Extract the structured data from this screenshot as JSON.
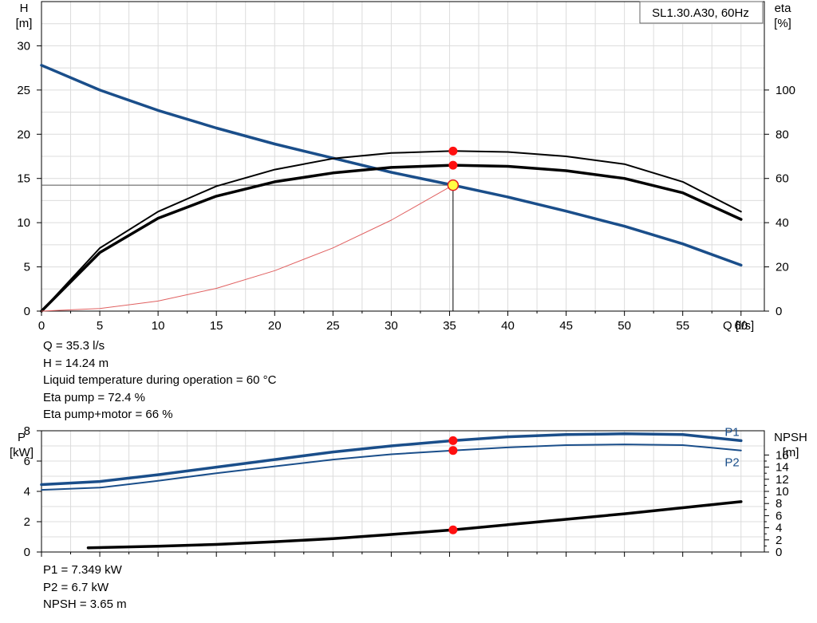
{
  "chart_data": [
    {
      "type": "line",
      "title": "SL1.30.A30, 60Hz",
      "xlabel": "Q [l/s]",
      "ylabel_left": [
        "H",
        "[m]"
      ],
      "ylabel_right": [
        "eta",
        "[%]"
      ],
      "xlim": [
        0,
        62
      ],
      "ylim_left": [
        0,
        35
      ],
      "ylim_right": [
        0,
        140
      ],
      "x_ticks": [
        "0",
        "5",
        "10",
        "15",
        "20",
        "25",
        "30",
        "35",
        "40",
        "45",
        "50",
        "55",
        "60"
      ],
      "y_left_ticks": [
        "0",
        "5",
        "10",
        "15",
        "20",
        "25",
        "30"
      ],
      "y_right_ticks": [
        "0",
        "20",
        "40",
        "60",
        "80",
        "100"
      ],
      "grid": true,
      "series": [
        {
          "role": "head",
          "axis": "left",
          "color": "#1a4e8a",
          "x": [
            0,
            5,
            10,
            15,
            20,
            25,
            30,
            35.3,
            40,
            45,
            50,
            55,
            60
          ],
          "y": [
            27.8,
            25.0,
            22.7,
            20.7,
            18.9,
            17.3,
            15.7,
            14.24,
            12.9,
            11.3,
            9.6,
            7.6,
            5.2
          ]
        },
        {
          "role": "eta_pump",
          "axis": "right",
          "color": "#000000",
          "x": [
            0,
            5,
            10,
            15,
            20,
            25,
            30,
            35.3,
            40,
            45,
            50,
            55,
            60
          ],
          "y": [
            0,
            28.5,
            45.0,
            56.5,
            64.0,
            69.0,
            71.5,
            72.4,
            72.0,
            70.0,
            66.5,
            58.5,
            45.0
          ]
        },
        {
          "role": "eta_pump_motor",
          "axis": "right",
          "color": "#000000",
          "x": [
            0,
            5,
            10,
            15,
            20,
            25,
            30,
            35.3,
            40,
            45,
            50,
            55,
            60
          ],
          "y": [
            0,
            26.5,
            42.0,
            52.0,
            58.5,
            62.5,
            65.0,
            66.0,
            65.5,
            63.5,
            60.0,
            53.5,
            41.5
          ]
        },
        {
          "role": "system_curve",
          "axis": "left",
          "color": "#e06060",
          "x": [
            0,
            5,
            10,
            15,
            20,
            25,
            30,
            35.3
          ],
          "y": [
            0,
            0.29,
            1.14,
            2.57,
            4.57,
            7.14,
            10.28,
            14.24
          ]
        }
      ],
      "markers": [
        {
          "x": 35.3,
          "y": 14.24,
          "axis": "left",
          "color": "#ffff44",
          "ring": "#e02020"
        },
        {
          "x": 35.3,
          "y": 72.4,
          "axis": "right",
          "color": "#ff1010"
        },
        {
          "x": 35.3,
          "y": 66.0,
          "axis": "right",
          "color": "#ff1010"
        }
      ],
      "operating_point": {
        "x": 35.3,
        "y": 14.24
      }
    },
    {
      "type": "line",
      "ylabel_left": [
        "P",
        "[kW]"
      ],
      "ylabel_right": [
        "NPSH",
        "[m]"
      ],
      "xlim": [
        0,
        62
      ],
      "ylim_left": [
        0,
        8
      ],
      "ylim_right": [
        0,
        20
      ],
      "y_left_ticks": [
        "0",
        "2",
        "4",
        "6",
        "8"
      ],
      "y_right_ticks": [
        "0",
        "2",
        "4",
        "6",
        "8",
        "10",
        "12",
        "14",
        "16"
      ],
      "y_right_ticks_values": [
        0,
        2,
        4,
        6,
        8,
        10,
        12,
        14,
        16
      ],
      "grid": true,
      "series": [
        {
          "name": "P1",
          "axis": "left",
          "color": "#1a4e8a",
          "x": [
            0,
            5,
            10,
            15,
            20,
            25,
            30,
            35.3,
            40,
            45,
            50,
            55,
            60
          ],
          "y": [
            4.45,
            4.65,
            5.1,
            5.6,
            6.1,
            6.6,
            7.0,
            7.349,
            7.6,
            7.75,
            7.8,
            7.75,
            7.35
          ]
        },
        {
          "name": "P2",
          "axis": "left",
          "color": "#1a4e8a",
          "x": [
            0,
            5,
            10,
            15,
            20,
            25,
            30,
            35.3,
            40,
            45,
            50,
            55,
            60
          ],
          "y": [
            4.1,
            4.25,
            4.7,
            5.2,
            5.65,
            6.1,
            6.45,
            6.7,
            6.9,
            7.05,
            7.1,
            7.05,
            6.7
          ]
        },
        {
          "role": "npsh",
          "axis": "right",
          "color": "#000000",
          "x": [
            4,
            10,
            15,
            20,
            25,
            30,
            35.3,
            40,
            45,
            50,
            55,
            60
          ],
          "y": [
            0.7,
            0.95,
            1.25,
            1.7,
            2.2,
            2.9,
            3.65,
            4.5,
            5.4,
            6.3,
            7.3,
            8.3
          ]
        }
      ],
      "markers": [
        {
          "x": 35.3,
          "y": 7.349,
          "axis": "left",
          "color": "#ff1010"
        },
        {
          "x": 35.3,
          "y": 6.7,
          "axis": "left",
          "color": "#ff1010"
        },
        {
          "x": 35.3,
          "y": 3.65,
          "axis": "right",
          "color": "#ff1010"
        }
      ]
    }
  ],
  "info_top": [
    "Q = 35.3 l/s",
    "H = 14.24 m",
    "Liquid temperature during operation = 60 °C",
    "Eta pump = 72.4 %",
    "Eta pump+motor = 66 %"
  ],
  "info_bottom": [
    "P1 = 7.349 kW",
    "P2 = 6.7 kW",
    "NPSH = 3.65 m"
  ]
}
